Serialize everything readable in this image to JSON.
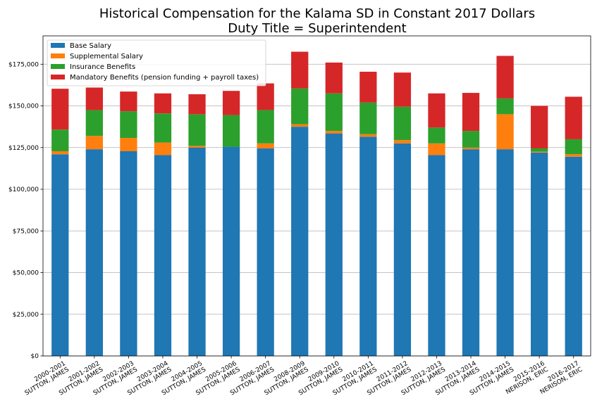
{
  "chart_data": {
    "type": "bar",
    "stacked": true,
    "title": "Historical Compensation for the Kalama SD in Constant 2017 Dollars",
    "subtitle": "Duty Title = Superintendent",
    "xlabel": "",
    "ylabel": "",
    "ylim": [
      0,
      192000
    ],
    "yticks": [
      "$0",
      "$25,000",
      "$50,000",
      "$75,000",
      "$100,000",
      "$125,000",
      "$150,000",
      "$175,000"
    ],
    "ytick_values": [
      0,
      25000,
      50000,
      75000,
      100000,
      125000,
      150000,
      175000
    ],
    "grid": "horizontal",
    "legend_position": "top-left",
    "categories": [
      [
        "2000-2001",
        "SUTTON, JAMES"
      ],
      [
        "2001-2002",
        "SUTTON, JAMES"
      ],
      [
        "2002-2003",
        "SUTTON, JAMES"
      ],
      [
        "2003-2004",
        "SUTTON, JAMES"
      ],
      [
        "2004-2005",
        "SUTTON, JAMES"
      ],
      [
        "2005-2006",
        "SUTTON, JAMES"
      ],
      [
        "2006-2007",
        "SUTTON, JAMES"
      ],
      [
        "2008-2009",
        "SUTTON, JAMES"
      ],
      [
        "2009-2010",
        "SUTTON, JAMES"
      ],
      [
        "2010-2011",
        "SUTTON, JAMES"
      ],
      [
        "2011-2012",
        "SUTTON, JAMES"
      ],
      [
        "2012-2013",
        "SUTTON, JAMES"
      ],
      [
        "2013-2014",
        "SUTTON, JAMES"
      ],
      [
        "2014-2015",
        "SUTTON, JAMES"
      ],
      [
        "2015-2016",
        "NERISON, ERIC"
      ],
      [
        "2016-2017",
        "NERISON, ERIC"
      ]
    ],
    "series": [
      {
        "name": "Base Salary",
        "color": "#1f77b4",
        "values": [
          121000,
          124000,
          122800,
          120500,
          125000,
          125500,
          124500,
          137500,
          133500,
          131500,
          127500,
          120500,
          124000,
          124000,
          122000,
          119500
        ]
      },
      {
        "name": "Supplemental Salary",
        "color": "#ff7f0e",
        "values": [
          1800,
          8000,
          8000,
          7500,
          1000,
          0,
          3000,
          1500,
          1500,
          1500,
          2000,
          7000,
          1000,
          21000,
          500,
          1500
        ]
      },
      {
        "name": "Insurance Benefits",
        "color": "#2ca02c",
        "values": [
          13000,
          15500,
          16000,
          17500,
          19000,
          19000,
          20000,
          21500,
          22500,
          19000,
          20000,
          9500,
          10000,
          9500,
          2000,
          9000
        ]
      },
      {
        "name": "Mandatory Benefits (pension funding + payroll taxes)",
        "color": "#d62728",
        "values": [
          24500,
          13500,
          11800,
          12000,
          12000,
          14500,
          16000,
          22000,
          18500,
          18500,
          20500,
          20500,
          22800,
          25500,
          25500,
          25500
        ]
      }
    ]
  }
}
